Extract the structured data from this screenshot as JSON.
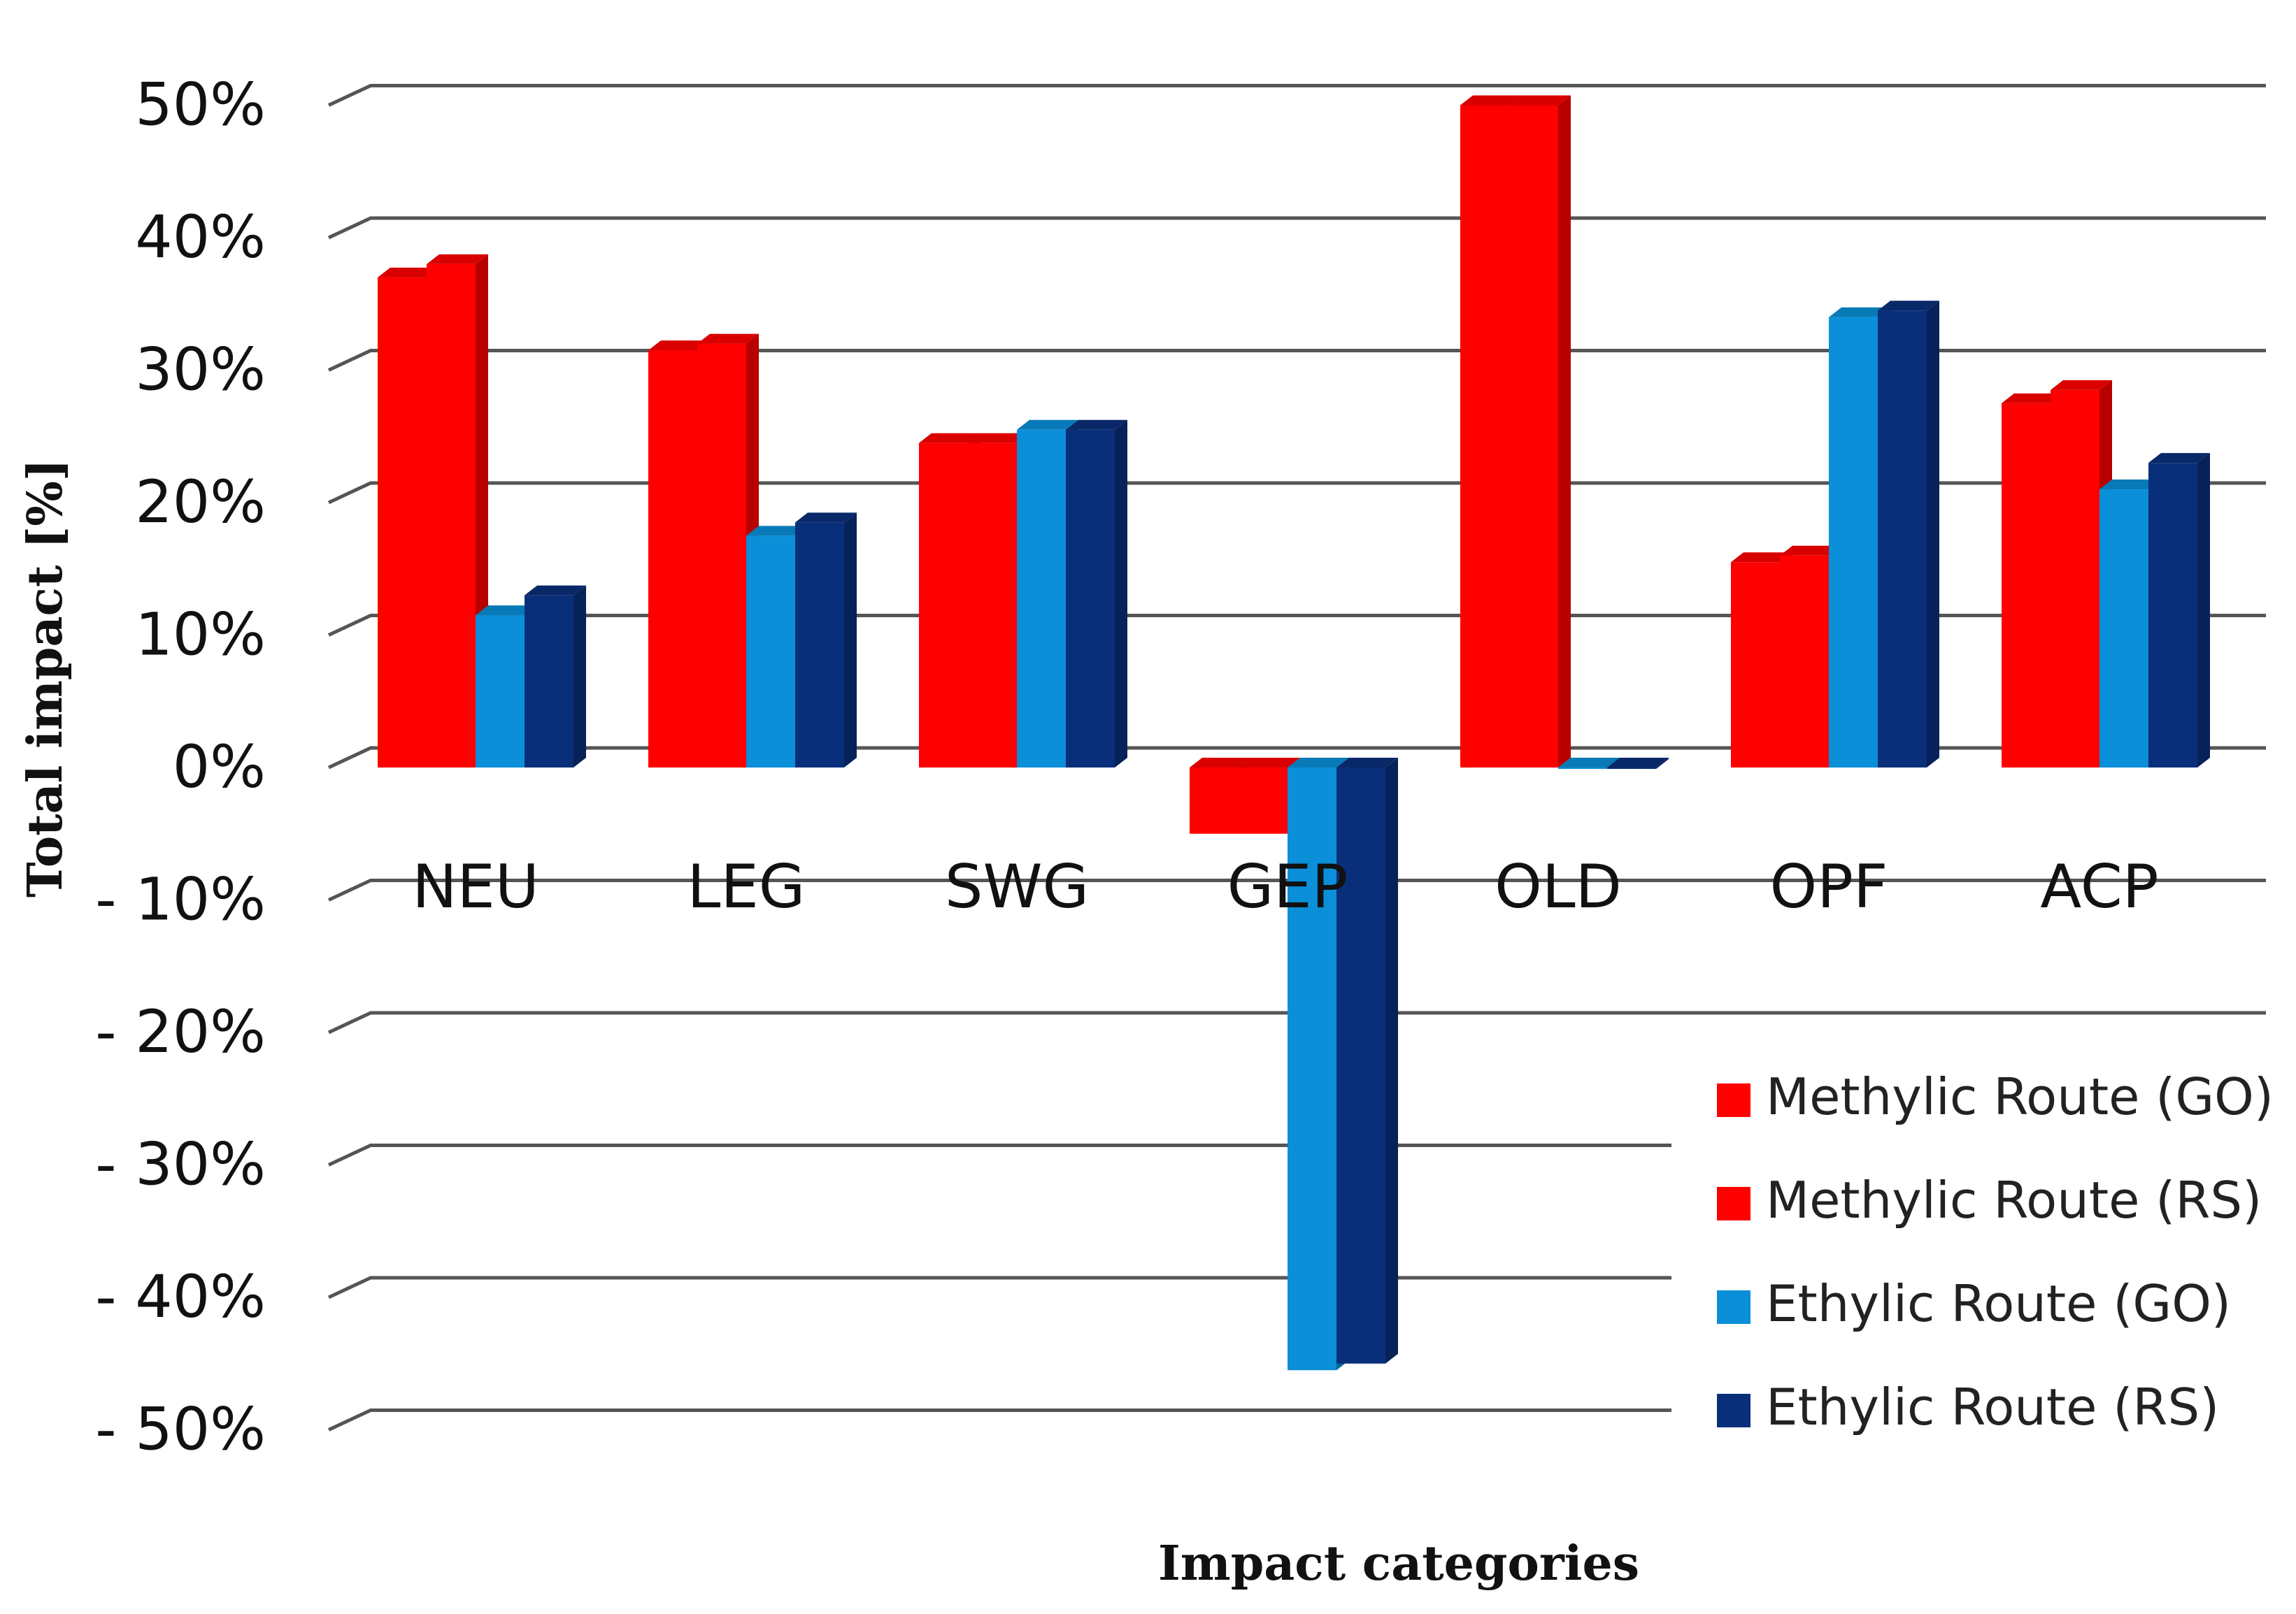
{
  "chart_data": {
    "type": "bar",
    "style": "3d-clustered-column",
    "title": "",
    "xlabel": "Impact categories",
    "ylabel": "Total impact [%]",
    "ylim": [
      -50,
      50
    ],
    "yticks": [
      50,
      40,
      30,
      20,
      10,
      0,
      -10,
      -20,
      -30,
      -40,
      -50
    ],
    "ytick_labels": [
      "50%",
      "40%",
      "30%",
      "20%",
      "10%",
      "0%",
      "- 10%",
      "- 20%",
      "- 30%",
      "- 40%",
      "- 50%"
    ],
    "grid": true,
    "legend_position": "bottom-right",
    "categories": [
      "NEU",
      "LEG",
      "SWG",
      "GEP",
      "OLD",
      "OPF",
      "ACP"
    ],
    "series": [
      {
        "name": "Methylic Route (GO)",
        "color": "#ff0000",
        "values": [
          37,
          31.5,
          24.5,
          -5,
          50,
          15.5,
          27.5
        ]
      },
      {
        "name": "Methylic Route (RS)",
        "color": "#ff0000",
        "values": [
          38,
          32,
          24.5,
          -5,
          50,
          16,
          28.5
        ]
      },
      {
        "name": "Ethylic Route (GO)",
        "color": "#0a8fd8",
        "values": [
          11.5,
          17.5,
          25.5,
          -45.5,
          0,
          34,
          21
        ]
      },
      {
        "name": "Ethylic Route (RS)",
        "color": "#0a2f7a",
        "values": [
          13,
          18.5,
          25.5,
          -45,
          0,
          34.5,
          23
        ]
      }
    ]
  }
}
